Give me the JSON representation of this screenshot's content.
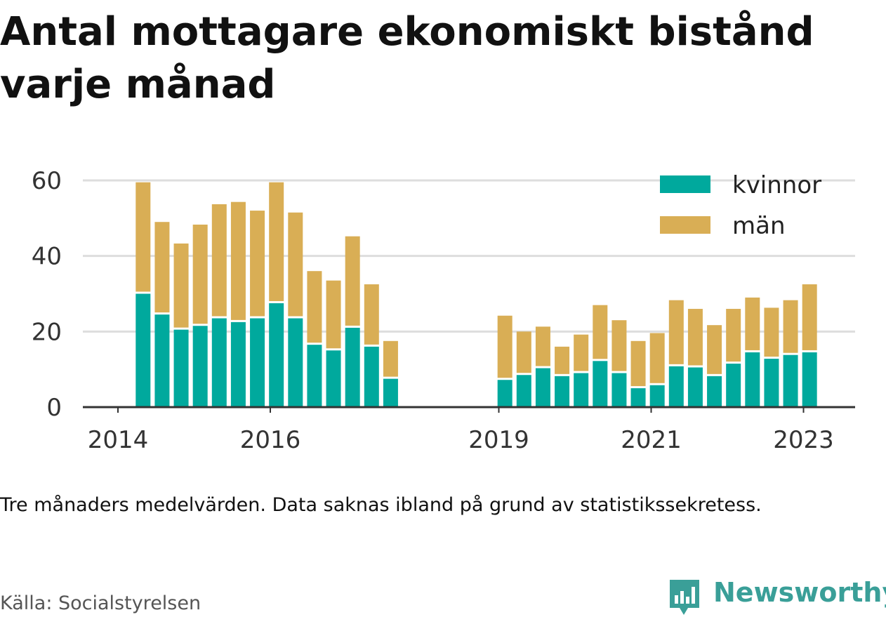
{
  "title": "Antal mottagare ekonomiskt bistånd varje månad",
  "note": "Tre månaders medelvärden. Data saknas ibland på grund av statistikssekretess.",
  "source": "Källa: Socialstyrelsen",
  "logo": {
    "text": "Newsworthy"
  },
  "colors": {
    "kvinnor": "#00a99d",
    "man": "#d9ae55",
    "grid": "#dddddd",
    "axis": "#333333"
  },
  "chart_data": {
    "type": "bar",
    "stacked": true,
    "title": "Antal mottagare ekonomiskt bistånd varje månad",
    "xlabel": "",
    "ylabel": "",
    "ylim": [
      0,
      60
    ],
    "yticks": [
      0,
      20,
      40,
      60
    ],
    "xticks": [
      "2014",
      "2016",
      "2019",
      "2021",
      "2023"
    ],
    "xtick_values": [
      2014.0,
      2016.0,
      2019.0,
      2021.0,
      2023.0
    ],
    "x_range": [
      2013.5,
      2023.67
    ],
    "grid": true,
    "legend_position": "top-right",
    "x": [
      2014.33,
      2014.58,
      2014.83,
      2015.08,
      2015.33,
      2015.58,
      2015.83,
      2016.08,
      2016.33,
      2016.58,
      2016.83,
      2017.08,
      2017.33,
      2017.58,
      2019.08,
      2019.33,
      2019.58,
      2019.83,
      2020.08,
      2020.33,
      2020.58,
      2020.83,
      2021.08,
      2021.33,
      2021.58,
      2021.83,
      2022.08,
      2022.33,
      2022.58,
      2022.83,
      2023.08
    ],
    "series": [
      {
        "name": "kvinnor",
        "values": [
          30,
          24.5,
          20.5,
          21.5,
          23.5,
          22.5,
          23.5,
          27.5,
          23.5,
          16.5,
          15,
          21,
          16,
          7.5,
          7.2,
          8.5,
          10.3,
          8.2,
          9,
          12.2,
          9,
          5,
          5.8,
          10.8,
          10.5,
          8.2,
          11.5,
          14.5,
          12.8,
          13.8,
          14.5
        ]
      },
      {
        "name": "män",
        "values": [
          29.5,
          24.5,
          22.8,
          26.8,
          30.2,
          31.8,
          28.5,
          32,
          28,
          19.5,
          18.5,
          24.2,
          16.5,
          10,
          17,
          11.5,
          11,
          7.8,
          10.2,
          14.8,
          14,
          12.5,
          13.8,
          17.5,
          15.5,
          13.5,
          14.5,
          14.5,
          13.5,
          14.5,
          18
        ]
      }
    ]
  }
}
